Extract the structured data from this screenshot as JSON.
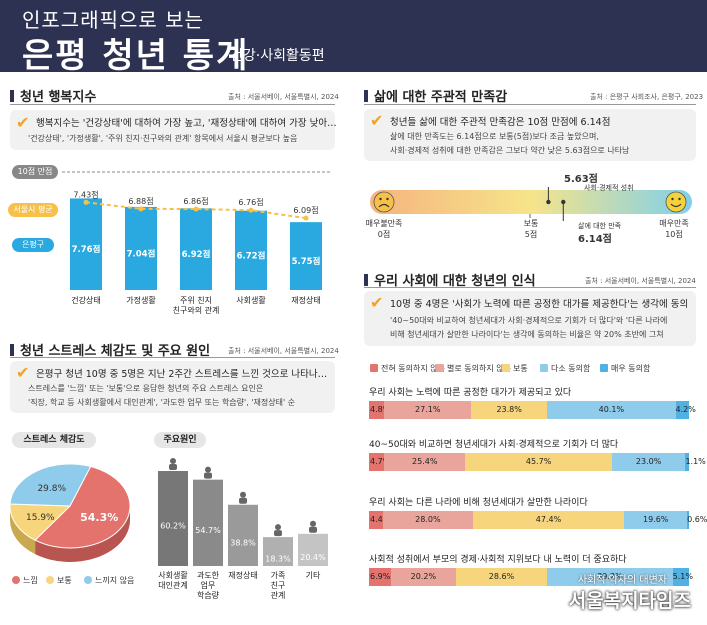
{
  "header": {
    "subtitle": "인포그래픽으로 보는",
    "title": "은평 청년 통계",
    "subtitle2": "건강·사회활동편"
  },
  "happiness": {
    "title": "청년 행복지수",
    "source": "출처 : 서울서베이, 서울특별시, 2024",
    "note_main": "행복지수는 '건강상태'에 대하여 가장 높고, '재정상태'에 대하여 가장 낮아…",
    "note_sub": "'건강상태', '가정생활', '주위 친지·친구와의 관계' 항목에서 서울시 평균보다 높음",
    "scale_label": "10점 만점",
    "seoul_label": "서울시 평균",
    "eunpyeong_label": "은평구"
  },
  "stress": {
    "title": "청년 스트레스 체감도 및 주요 원인",
    "source": "출처 : 서울서베이, 서울특별시, 2024",
    "note_main": "은평구 청년 10명 중 5명은 지난 2주간 스트레스를 느낀 것으로 나타나…",
    "note_sub1": "스트레스를 '느낌' 또는 '보통'으로 응답한 청년의 주요 스트레스 요인은",
    "note_sub2": "'직장, 학교 등 사회생활에서 대인관계', '과도한 업무 또는 학습량', '재정상태' 순",
    "pie_title": "스트레스 체감도",
    "cause_title": "주요원인"
  },
  "satisfaction": {
    "title": "삶에 대한 주관적 만족감",
    "source": "출처 : 은평구 사회조사, 은평구, 2023",
    "note_main": "청년들 삶에 대한 주관적 만족감은 10점 만점에 6.14점",
    "note_sub1": "삶에 대한 만족도는 6.14점으로 보통(5점)보다 조금 높았으며,",
    "note_sub2": "사회·경제적 성취에 대한 만족감은 그보다 약간 낮은 5.63점으로 나타남",
    "min_label1": "매우불만족",
    "min_label2": "0점",
    "mid_label1": "보통",
    "mid_label2": "5점",
    "max_label1": "매우만족",
    "max_label2": "10점",
    "social_value": "5.63점",
    "social_label": "사회·경제적 성취",
    "life_label": "삶에 대한 만족",
    "life_value": "6.14점",
    "social_score": 5.63,
    "life_score": 6.14
  },
  "perception": {
    "title": "우리 사회에 대한 청년의 인식",
    "source": "출처 : 서울서베이, 서울특별시, 2024",
    "note_main": "10명 중 4명은 '사회가 노력에 따른 공정한 대가를 제공한다'는 생각에 동의",
    "note_sub1": "'40~50대와 비교하여 청년세대가 사회·경제적으로 기회가 더 많다'와 '다른 나라에",
    "note_sub2": "비해 청년세대가 살만한 나라이다'는 생각에 동의하는 비율은 약 20% 초반에 그쳐"
  },
  "watermark": {
    "small": "사회적 약자의 대변자",
    "big": "서울복지타임즈"
  },
  "colors": {
    "navy": "#2d3252",
    "orange": "#f4a41c",
    "blue": "#29a9e0",
    "seoul": "#f6c049",
    "red": "#e4736d",
    "salmon": "#e9a59b",
    "yellow": "#f7d57c",
    "lightblue": "#8fcbea",
    "skyblue": "#4fb2e3"
  },
  "chart_data": [
    {
      "type": "bar",
      "categories": [
        "건강상태",
        "가정생활",
        "주위 친지·친구와의 관계",
        "사회생활",
        "재정상태"
      ],
      "category_lines": [
        [
          "건강상태"
        ],
        [
          "가정생활"
        ],
        [
          "주위 친지",
          "친구와의 관계"
        ],
        [
          "사회생활"
        ],
        [
          "재정상태"
        ]
      ],
      "series": [
        {
          "name": "은평구",
          "values": [
            7.76,
            7.04,
            6.92,
            6.72,
            5.75
          ],
          "labels": [
            "7.76점",
            "7.04점",
            "6.92점",
            "6.72점",
            "5.75점"
          ]
        },
        {
          "name": "서울시 평균",
          "values": [
            7.43,
            6.88,
            6.86,
            6.76,
            6.09
          ],
          "labels": [
            "7.43점",
            "6.88점",
            "6.86점",
            "6.76점",
            "6.09점"
          ]
        }
      ],
      "ylim": [
        0,
        10
      ]
    },
    {
      "type": "pie",
      "title": "스트레스 체감도",
      "categories": [
        "느낌",
        "보통",
        "느끼지 않음"
      ],
      "values": [
        54.3,
        15.9,
        29.8
      ],
      "labels": [
        "54.3%",
        "15.9%",
        "29.8%"
      ],
      "colors": [
        "#e4736d",
        "#f7d57c",
        "#8fcbea"
      ]
    },
    {
      "type": "bar",
      "title": "주요원인",
      "categories": [
        "사회생활 대인관계",
        "과도한 업무·학습량",
        "재정상태",
        "가족 친구 관계",
        "기타"
      ],
      "category_lines": [
        [
          "사회생활",
          "대인관계"
        ],
        [
          "과도한",
          "업무",
          "학습량"
        ],
        [
          "재정상태"
        ],
        [
          "가족",
          "친구",
          "관계"
        ],
        [
          "기타"
        ]
      ],
      "values": [
        60.2,
        54.7,
        38.8,
        18.3,
        20.4
      ],
      "labels": [
        "60.2%",
        "54.7%",
        "38.8%",
        "18.3%",
        "20.4%"
      ]
    },
    {
      "type": "bar",
      "stacked": true,
      "legend": [
        "전혀 동의하지 않음",
        "별로 동의하지 않음",
        "보통",
        "다소 동의함",
        "매우 동의함"
      ],
      "colors": [
        "#e4736d",
        "#e9a59b",
        "#f7d57c",
        "#8fcbea",
        "#4fb2e3"
      ],
      "rows": [
        {
          "label": "우리 사회는 노력에 따른 공정한 대가가 제공되고 있다",
          "values": [
            4.8,
            27.1,
            23.8,
            40.1,
            4.2
          ],
          "labels": [
            "4.8%",
            "27.1%",
            "23.8%",
            "40.1%",
            "4.2%"
          ]
        },
        {
          "label": "40~50대와 비교하면 청년세대가 사회·경제적으로 기회가 더 많다",
          "values": [
            4.7,
            25.4,
            45.7,
            23.0,
            1.1
          ],
          "labels": [
            "4.7%",
            "25.4%",
            "45.7%",
            "23.0%",
            "1.1%"
          ]
        },
        {
          "label": "우리 사회는 다른 나라에 비해 청년세대가 살만한 나라이다",
          "values": [
            4.4,
            28.0,
            47.4,
            19.6,
            0.6
          ],
          "labels": [
            "4.4%",
            "28.0%",
            "47.4%",
            "19.6%",
            "0.6%"
          ]
        },
        {
          "label": "사회적 성취에서 부모의 경제·사회적 지위보다 내 노력이 더 중요하다",
          "values": [
            6.9,
            20.2,
            28.6,
            39.2,
            5.1
          ],
          "labels": [
            "6.9%",
            "20.2%",
            "28.6%",
            "39.2%",
            "5.1%"
          ]
        }
      ]
    }
  ]
}
